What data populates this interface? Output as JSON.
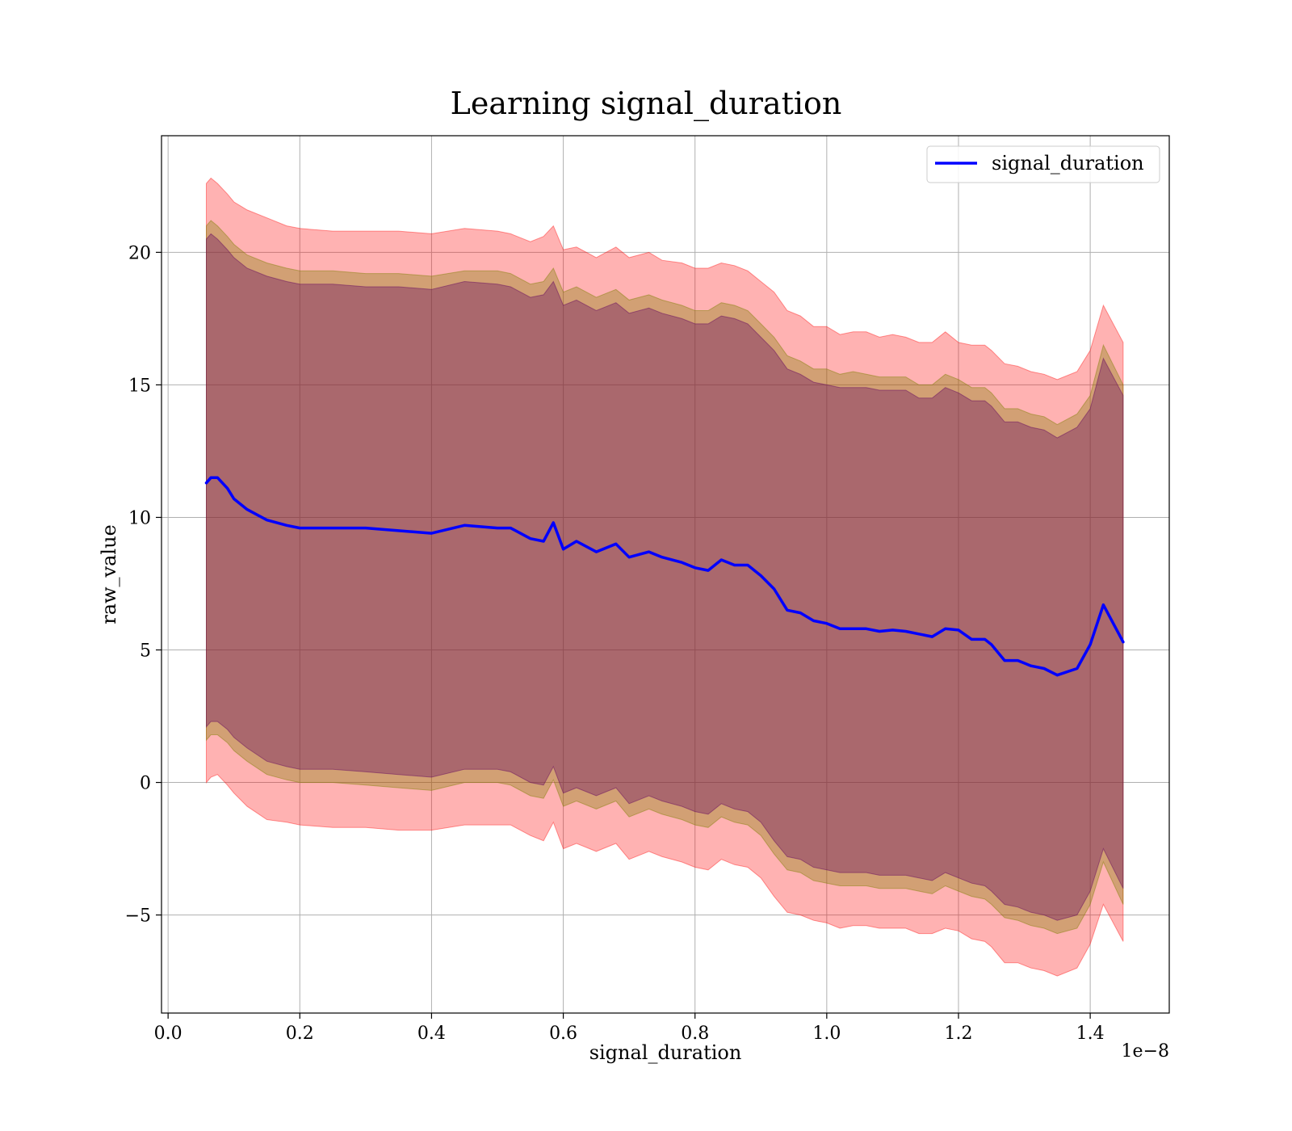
{
  "chart_data": {
    "type": "line",
    "title": "Learning signal_duration",
    "xlabel": "signal_duration",
    "ylabel": "raw_value",
    "x_offset_label": "1e−8",
    "xlim": [
      -0.01,
      1.52
    ],
    "ylim": [
      -8.7,
      24.4
    ],
    "x_ticks": [
      0.0,
      0.2,
      0.4,
      0.6,
      0.8,
      1.0,
      1.2,
      1.4
    ],
    "x_tick_labels": [
      "0.0",
      "0.2",
      "0.4",
      "0.6",
      "0.8",
      "1.0",
      "1.2",
      "1.4"
    ],
    "y_ticks": [
      -5,
      0,
      5,
      10,
      15,
      20
    ],
    "y_tick_labels": [
      "−5",
      "0",
      "5",
      "10",
      "15",
      "20"
    ],
    "grid": true,
    "legend": {
      "position": "top-right",
      "entries": [
        "signal_duration"
      ]
    },
    "series": [
      {
        "name": "signal_duration",
        "color": "#0000ff",
        "x": [
          0.058,
          0.065,
          0.075,
          0.09,
          0.1,
          0.12,
          0.15,
          0.18,
          0.2,
          0.25,
          0.3,
          0.35,
          0.4,
          0.45,
          0.5,
          0.52,
          0.55,
          0.57,
          0.585,
          0.6,
          0.62,
          0.65,
          0.68,
          0.7,
          0.73,
          0.75,
          0.78,
          0.8,
          0.82,
          0.84,
          0.86,
          0.88,
          0.9,
          0.92,
          0.94,
          0.96,
          0.98,
          1.0,
          1.02,
          1.04,
          1.06,
          1.08,
          1.1,
          1.12,
          1.14,
          1.16,
          1.18,
          1.2,
          1.22,
          1.24,
          1.25,
          1.27,
          1.29,
          1.31,
          1.33,
          1.35,
          1.38,
          1.4,
          1.42,
          1.45
        ],
        "values": [
          11.3,
          11.5,
          11.5,
          11.1,
          10.7,
          10.3,
          9.9,
          9.7,
          9.6,
          9.6,
          9.6,
          9.5,
          9.4,
          9.7,
          9.6,
          9.6,
          9.2,
          9.1,
          9.8,
          8.8,
          9.1,
          8.7,
          9.0,
          8.5,
          8.7,
          8.5,
          8.3,
          8.1,
          8.0,
          8.4,
          8.2,
          8.2,
          7.8,
          7.3,
          6.5,
          6.4,
          6.1,
          6.0,
          5.8,
          5.8,
          5.8,
          5.7,
          5.75,
          5.7,
          5.6,
          5.5,
          5.8,
          5.75,
          5.4,
          5.4,
          5.2,
          4.6,
          4.6,
          4.4,
          4.3,
          4.05,
          4.3,
          5.2,
          6.7,
          5.3
        ]
      }
    ],
    "bands": [
      {
        "color": "#ff0000",
        "opacity": 0.3,
        "x": [
          0.058,
          0.065,
          0.075,
          0.09,
          0.1,
          0.12,
          0.15,
          0.18,
          0.2,
          0.25,
          0.3,
          0.35,
          0.4,
          0.45,
          0.5,
          0.52,
          0.55,
          0.57,
          0.585,
          0.6,
          0.62,
          0.65,
          0.68,
          0.7,
          0.73,
          0.75,
          0.78,
          0.8,
          0.82,
          0.84,
          0.86,
          0.88,
          0.9,
          0.92,
          0.94,
          0.96,
          0.98,
          1.0,
          1.02,
          1.04,
          1.06,
          1.08,
          1.1,
          1.12,
          1.14,
          1.16,
          1.18,
          1.2,
          1.22,
          1.24,
          1.25,
          1.27,
          1.29,
          1.31,
          1.33,
          1.35,
          1.38,
          1.4,
          1.42,
          1.45
        ],
        "upper": [
          22.6,
          22.8,
          22.6,
          22.2,
          21.9,
          21.6,
          21.3,
          21.0,
          20.9,
          20.8,
          20.8,
          20.8,
          20.7,
          20.9,
          20.8,
          20.7,
          20.4,
          20.6,
          21.0,
          20.1,
          20.2,
          19.8,
          20.2,
          19.8,
          20.0,
          19.7,
          19.6,
          19.4,
          19.4,
          19.6,
          19.5,
          19.3,
          18.9,
          18.5,
          17.8,
          17.6,
          17.2,
          17.2,
          16.9,
          17.0,
          17.0,
          16.8,
          16.9,
          16.8,
          16.6,
          16.6,
          17.0,
          16.6,
          16.5,
          16.5,
          16.3,
          15.8,
          15.7,
          15.5,
          15.4,
          15.2,
          15.5,
          16.3,
          18.0,
          16.6
        ],
        "lower": [
          0.0,
          0.2,
          0.3,
          -0.1,
          -0.4,
          -0.9,
          -1.4,
          -1.5,
          -1.6,
          -1.7,
          -1.7,
          -1.8,
          -1.8,
          -1.6,
          -1.6,
          -1.6,
          -2.0,
          -2.2,
          -1.5,
          -2.5,
          -2.3,
          -2.6,
          -2.3,
          -2.9,
          -2.6,
          -2.8,
          -3.0,
          -3.2,
          -3.3,
          -2.9,
          -3.1,
          -3.2,
          -3.6,
          -4.3,
          -4.9,
          -5.0,
          -5.2,
          -5.3,
          -5.5,
          -5.4,
          -5.4,
          -5.5,
          -5.5,
          -5.5,
          -5.7,
          -5.7,
          -5.5,
          -5.6,
          -5.9,
          -6.0,
          -6.2,
          -6.8,
          -6.8,
          -7.0,
          -7.1,
          -7.3,
          -7.0,
          -6.1,
          -4.6,
          -6.0
        ]
      },
      {
        "color": "#7f7f00",
        "opacity": 0.35,
        "x": [
          0.058,
          0.065,
          0.075,
          0.09,
          0.1,
          0.12,
          0.15,
          0.18,
          0.2,
          0.25,
          0.3,
          0.35,
          0.4,
          0.45,
          0.5,
          0.52,
          0.55,
          0.57,
          0.585,
          0.6,
          0.62,
          0.65,
          0.68,
          0.7,
          0.73,
          0.75,
          0.78,
          0.8,
          0.82,
          0.84,
          0.86,
          0.88,
          0.9,
          0.92,
          0.94,
          0.96,
          0.98,
          1.0,
          1.02,
          1.04,
          1.06,
          1.08,
          1.1,
          1.12,
          1.14,
          1.16,
          1.18,
          1.2,
          1.22,
          1.24,
          1.25,
          1.27,
          1.29,
          1.31,
          1.33,
          1.35,
          1.38,
          1.4,
          1.42,
          1.45
        ],
        "upper": [
          21.0,
          21.2,
          21.0,
          20.6,
          20.3,
          19.9,
          19.6,
          19.4,
          19.3,
          19.3,
          19.2,
          19.2,
          19.1,
          19.3,
          19.3,
          19.2,
          18.8,
          18.9,
          19.4,
          18.5,
          18.7,
          18.3,
          18.6,
          18.2,
          18.4,
          18.2,
          18.0,
          17.8,
          17.8,
          18.1,
          18.0,
          17.8,
          17.3,
          16.8,
          16.1,
          15.9,
          15.6,
          15.6,
          15.4,
          15.5,
          15.4,
          15.3,
          15.3,
          15.3,
          15.0,
          15.0,
          15.4,
          15.2,
          14.9,
          14.9,
          14.7,
          14.1,
          14.1,
          13.9,
          13.8,
          13.5,
          13.9,
          14.6,
          16.5,
          15.0
        ],
        "lower": [
          1.6,
          1.8,
          1.8,
          1.5,
          1.2,
          0.8,
          0.3,
          0.1,
          0.0,
          0.0,
          -0.1,
          -0.2,
          -0.3,
          0.0,
          0.0,
          -0.1,
          -0.5,
          -0.6,
          0.1,
          -0.9,
          -0.7,
          -1.0,
          -0.7,
          -1.3,
          -1.0,
          -1.2,
          -1.4,
          -1.6,
          -1.7,
          -1.3,
          -1.5,
          -1.6,
          -2.0,
          -2.7,
          -3.3,
          -3.4,
          -3.7,
          -3.8,
          -3.9,
          -3.9,
          -3.9,
          -4.0,
          -4.0,
          -4.0,
          -4.1,
          -4.2,
          -3.9,
          -4.1,
          -4.3,
          -4.4,
          -4.6,
          -5.1,
          -5.2,
          -5.4,
          -5.5,
          -5.7,
          -5.5,
          -4.6,
          -3.0,
          -4.6
        ]
      },
      {
        "color": "#600060",
        "opacity": 0.35,
        "x": [
          0.058,
          0.065,
          0.075,
          0.09,
          0.1,
          0.12,
          0.15,
          0.18,
          0.2,
          0.25,
          0.3,
          0.35,
          0.4,
          0.45,
          0.5,
          0.52,
          0.55,
          0.57,
          0.585,
          0.6,
          0.62,
          0.65,
          0.68,
          0.7,
          0.73,
          0.75,
          0.78,
          0.8,
          0.82,
          0.84,
          0.86,
          0.88,
          0.9,
          0.92,
          0.94,
          0.96,
          0.98,
          1.0,
          1.02,
          1.04,
          1.06,
          1.08,
          1.1,
          1.12,
          1.14,
          1.16,
          1.18,
          1.2,
          1.22,
          1.24,
          1.25,
          1.27,
          1.29,
          1.31,
          1.33,
          1.35,
          1.38,
          1.4,
          1.42,
          1.45
        ],
        "upper": [
          20.5,
          20.7,
          20.5,
          20.1,
          19.8,
          19.4,
          19.1,
          18.9,
          18.8,
          18.8,
          18.7,
          18.7,
          18.6,
          18.9,
          18.8,
          18.7,
          18.3,
          18.4,
          18.9,
          18.0,
          18.2,
          17.8,
          18.1,
          17.7,
          17.9,
          17.7,
          17.5,
          17.3,
          17.3,
          17.6,
          17.5,
          17.3,
          16.8,
          16.3,
          15.6,
          15.4,
          15.1,
          15.0,
          14.9,
          14.9,
          14.9,
          14.8,
          14.8,
          14.8,
          14.5,
          14.5,
          14.9,
          14.7,
          14.4,
          14.4,
          14.2,
          13.6,
          13.6,
          13.4,
          13.3,
          13.0,
          13.4,
          14.1,
          16.0,
          14.6
        ],
        "lower": [
          2.1,
          2.3,
          2.3,
          2.0,
          1.7,
          1.3,
          0.8,
          0.6,
          0.5,
          0.5,
          0.4,
          0.3,
          0.2,
          0.5,
          0.5,
          0.4,
          0.0,
          -0.1,
          0.6,
          -0.4,
          -0.2,
          -0.5,
          -0.2,
          -0.8,
          -0.5,
          -0.7,
          -0.9,
          -1.1,
          -1.2,
          -0.8,
          -1.0,
          -1.1,
          -1.5,
          -2.2,
          -2.8,
          -2.9,
          -3.2,
          -3.3,
          -3.4,
          -3.4,
          -3.4,
          -3.5,
          -3.5,
          -3.5,
          -3.6,
          -3.7,
          -3.4,
          -3.6,
          -3.8,
          -3.9,
          -4.1,
          -4.6,
          -4.7,
          -4.9,
          -5.0,
          -5.2,
          -5.0,
          -4.1,
          -2.5,
          -4.0
        ]
      }
    ]
  }
}
